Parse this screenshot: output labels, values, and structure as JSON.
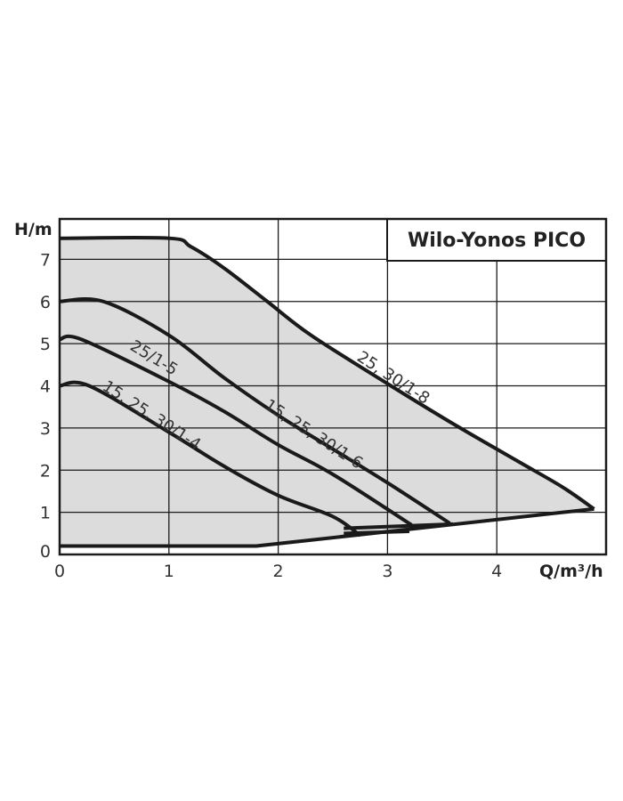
{
  "chart_data": {
    "type": "line",
    "title": "Wilo-Yonos PICO",
    "xlabel": "Q/m³/h",
    "ylabel": "H/m",
    "xlim": [
      0,
      5
    ],
    "ylim": [
      0,
      8
    ],
    "xticks": [
      "0",
      "1",
      "2",
      "3",
      "4"
    ],
    "yticks": [
      "0",
      "1",
      "2",
      "3",
      "4",
      "5",
      "6",
      "7"
    ],
    "grid": true,
    "fill_color": "#dcdcdc",
    "line_color": "#1a1a1a",
    "series": [
      {
        "name": "25, 30/1-8",
        "x": [
          0,
          1.0,
          1.2,
          1.5,
          1.9,
          2.3,
          3.0,
          3.6,
          4.2,
          4.6,
          4.89
        ],
        "y": [
          7.5,
          7.5,
          7.3,
          6.8,
          6.0,
          5.2,
          4.05,
          3.1,
          2.2,
          1.6,
          1.08
        ]
      },
      {
        "name": "15, 25, 30/1-6",
        "x": [
          0,
          0.4,
          1.0,
          1.5,
          2.0,
          2.5,
          3.0,
          3.57
        ],
        "y": [
          6.0,
          6.0,
          5.2,
          4.2,
          3.3,
          2.5,
          1.7,
          0.74
        ]
      },
      {
        "name": "25/1-5",
        "x": [
          0,
          0.2,
          1.0,
          1.5,
          2.0,
          2.5,
          3.22
        ],
        "y": [
          5.1,
          5.1,
          4.1,
          3.4,
          2.6,
          1.9,
          0.7
        ]
      },
      {
        "name": "15, 25, 30/1-4",
        "x": [
          0,
          0.27,
          1.0,
          1.5,
          2.0,
          2.5,
          2.75
        ],
        "y": [
          4.0,
          4.0,
          2.9,
          2.1,
          1.4,
          0.9,
          0.45
        ]
      },
      {
        "name": "",
        "x": [
          0,
          1.8,
          4.89
        ],
        "y": [
          0.2,
          0.2,
          1.08
        ]
      }
    ]
  }
}
